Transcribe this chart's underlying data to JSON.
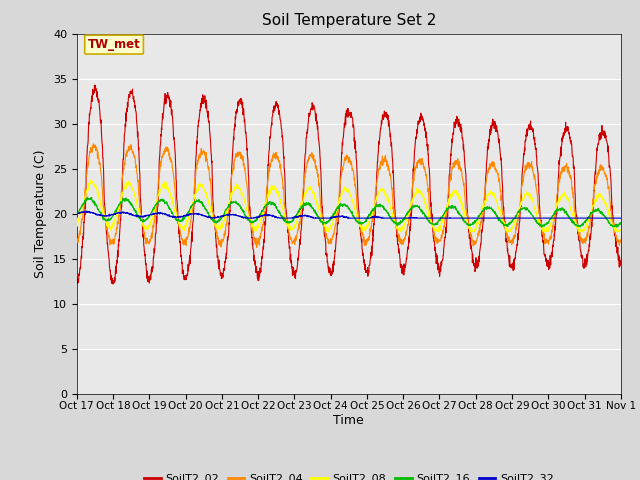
{
  "title": "Soil Temperature Set 2",
  "xlabel": "Time",
  "ylabel": "Soil Temperature (C)",
  "ylim": [
    0,
    40
  ],
  "yticks": [
    0,
    5,
    10,
    15,
    20,
    25,
    30,
    35,
    40
  ],
  "x_labels": [
    "Oct 17",
    "Oct 18",
    "Oct 19",
    "Oct 20",
    "Oct 21",
    "Oct 22",
    "Oct 23",
    "Oct 24",
    "Oct 25",
    "Oct 26",
    "Oct 27",
    "Oct 28",
    "Oct 29",
    "Oct 30",
    "Oct 31",
    "Nov 1"
  ],
  "annotation_text": "TW_met",
  "annotation_box_color": "#ffffcc",
  "annotation_box_edge": "#ccaa00",
  "annotation_text_color": "#aa0000",
  "series_colors": {
    "SoilT2_02": "#cc0000",
    "SoilT2_04": "#ff8800",
    "SoilT2_08": "#ffff00",
    "SoilT2_16": "#00bb00",
    "SoilT2_32": "#0000cc"
  },
  "background_color": "#e8e8e8",
  "fig_background": "#d8d8d8",
  "grid_color": "#ffffff",
  "n_days": 15,
  "points_per_day": 144
}
